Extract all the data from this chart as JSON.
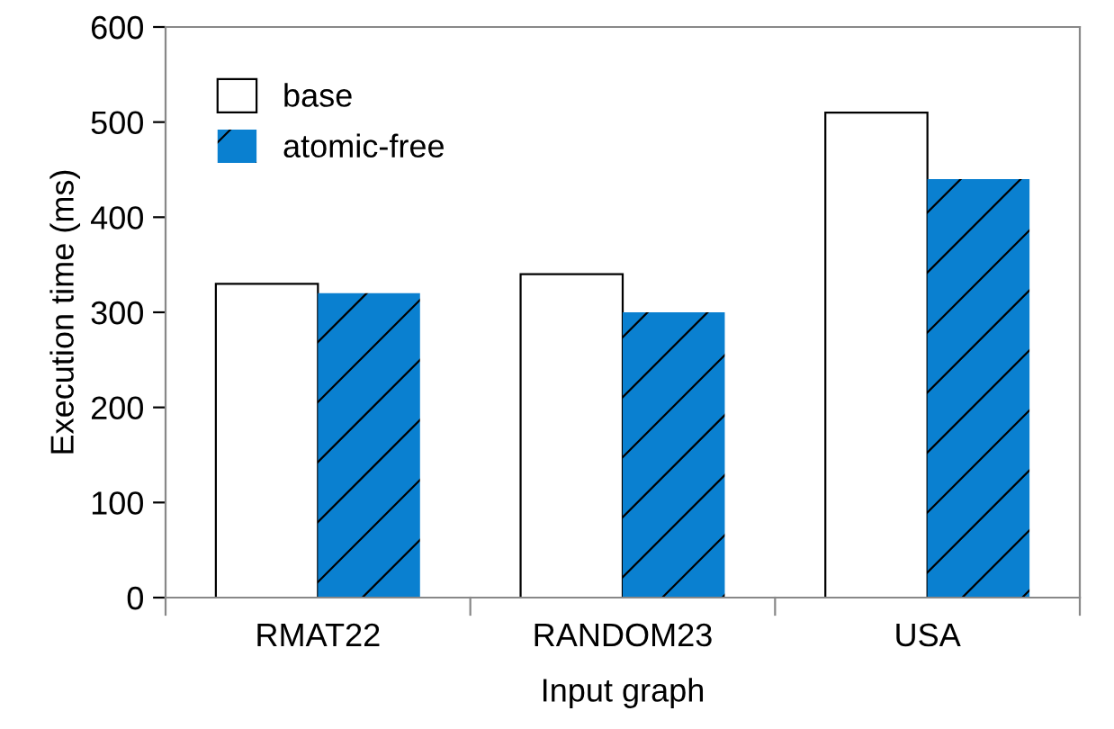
{
  "chart_data": {
    "type": "bar",
    "xlabel": "Input graph",
    "ylabel": "Execution time (ms)",
    "categories": [
      "RMAT22",
      "RANDOM23",
      "USA"
    ],
    "series": [
      {
        "name": "base",
        "color": "#ffffff",
        "values": [
          330,
          340,
          510
        ]
      },
      {
        "name": "atomic-free",
        "color": "#0a80d0",
        "values": [
          320,
          300,
          440
        ]
      }
    ],
    "ylim": [
      0,
      600
    ],
    "yticks": [
      0,
      100,
      200,
      300,
      400,
      500,
      600
    ],
    "grid": false,
    "legend": "top left"
  }
}
